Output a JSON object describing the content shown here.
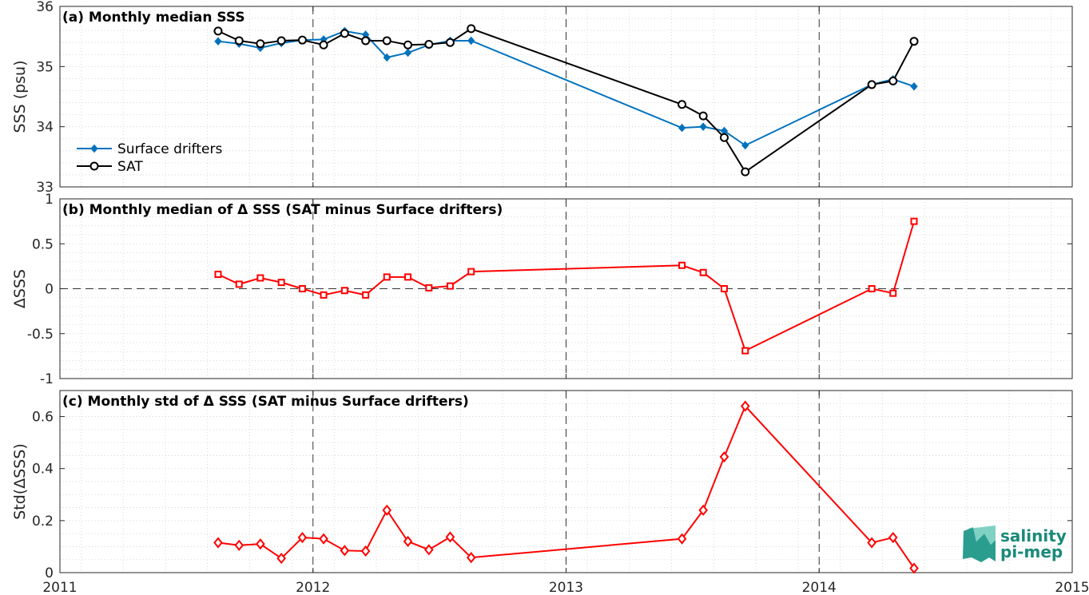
{
  "logo": {
    "line1": "salinity",
    "line2": "pi-mep"
  },
  "colors": {
    "drifters": "#0072BD",
    "sat": "#000000",
    "delta": "#FF0000"
  },
  "chart_data": [
    {
      "type": "line",
      "title": "(a) Monthly median SSS",
      "ylabel": "SSS (psu)",
      "xlim": [
        2011,
        2015
      ],
      "ylim": [
        33,
        36
      ],
      "yticks": [
        "33",
        "34",
        "35",
        "36"
      ],
      "xticks": [
        "2011",
        "2012",
        "2013",
        "2014",
        "2015"
      ],
      "legend": "left",
      "grid": true,
      "series": [
        {
          "name": "Surface drifters",
          "marker": "dot",
          "x": [
            2011.625,
            2011.708,
            2011.792,
            2011.875,
            2011.958,
            2012.042,
            2012.125,
            2012.208,
            2012.292,
            2012.375,
            2012.458,
            2012.542,
            2012.625,
            2013.458,
            2013.542,
            2013.625,
            2013.708,
            2014.208,
            2014.292,
            2014.375
          ],
          "y": [
            35.42,
            35.38,
            35.31,
            35.39,
            35.44,
            35.45,
            35.59,
            35.53,
            35.15,
            35.23,
            35.36,
            35.43,
            35.43,
            33.98,
            34.0,
            33.93,
            33.69,
            34.7,
            34.79,
            34.67
          ]
        },
        {
          "name": "SAT",
          "marker": "circle",
          "x": [
            2011.625,
            2011.708,
            2011.792,
            2011.875,
            2011.958,
            2012.042,
            2012.125,
            2012.208,
            2012.292,
            2012.375,
            2012.458,
            2012.542,
            2012.625,
            2013.458,
            2013.542,
            2013.625,
            2013.708,
            2014.208,
            2014.292,
            2014.375
          ],
          "y": [
            35.59,
            35.43,
            35.38,
            35.43,
            35.44,
            35.36,
            35.55,
            35.43,
            35.43,
            35.36,
            35.37,
            35.4,
            35.63,
            34.37,
            34.18,
            33.82,
            33.25,
            34.7,
            34.76,
            35.42
          ]
        }
      ]
    },
    {
      "type": "line",
      "title": "(b) Monthly median of Δ SSS (SAT minus Surface drifters)",
      "ylabel": "ΔSSS",
      "xlim": [
        2011,
        2015
      ],
      "ylim": [
        -1,
        1
      ],
      "yticks": [
        "-1",
        "-0.5",
        "0",
        "0.5",
        "1"
      ],
      "xticks": [
        "2011",
        "2012",
        "2013",
        "2014",
        "2015"
      ],
      "grid": true,
      "series": [
        {
          "marker": "square",
          "x": [
            2011.625,
            2011.708,
            2011.792,
            2011.875,
            2011.958,
            2012.042,
            2012.125,
            2012.208,
            2012.292,
            2012.375,
            2012.458,
            2012.542,
            2012.625,
            2013.458,
            2013.542,
            2013.625,
            2013.708,
            2014.208,
            2014.292,
            2014.375
          ],
          "y": [
            0.16,
            0.05,
            0.12,
            0.07,
            0.0,
            -0.07,
            -0.02,
            -0.07,
            0.13,
            0.13,
            0.01,
            0.03,
            0.19,
            0.26,
            0.18,
            0.0,
            -0.69,
            0.0,
            -0.05,
            0.75
          ]
        }
      ]
    },
    {
      "type": "line",
      "title": "(c) Monthly std of Δ SSS (SAT minus Surface drifters)",
      "ylabel": "Std(ΔSSS)",
      "xlim": [
        2011,
        2015
      ],
      "ylim": [
        0,
        0.7
      ],
      "yticks": [
        "0",
        "0.2",
        "0.4",
        "0.6"
      ],
      "xticks": [
        "2011",
        "2012",
        "2013",
        "2014",
        "2015"
      ],
      "grid": true,
      "series": [
        {
          "marker": "diamond",
          "x": [
            2011.625,
            2011.708,
            2011.792,
            2011.875,
            2011.958,
            2012.042,
            2012.125,
            2012.208,
            2012.292,
            2012.375,
            2012.458,
            2012.542,
            2012.625,
            2013.458,
            2013.542,
            2013.625,
            2013.708,
            2014.208,
            2014.292,
            2014.375
          ],
          "y": [
            0.115,
            0.105,
            0.11,
            0.055,
            0.135,
            0.13,
            0.085,
            0.083,
            0.24,
            0.12,
            0.088,
            0.137,
            0.058,
            0.13,
            0.24,
            0.445,
            0.64,
            0.115,
            0.135,
            0.017
          ]
        }
      ]
    }
  ]
}
